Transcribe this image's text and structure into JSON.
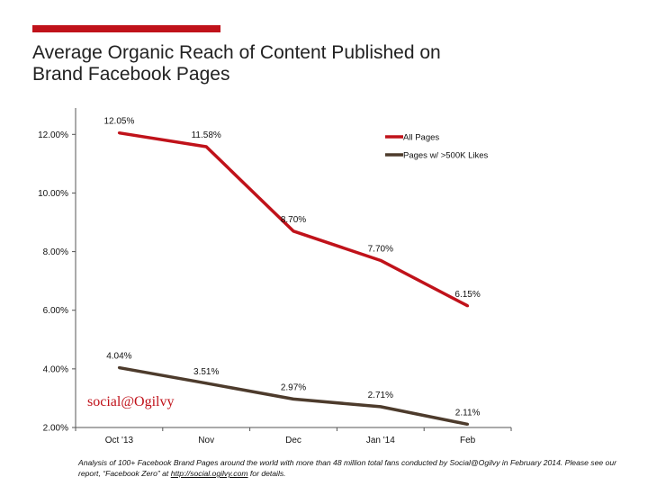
{
  "header": {
    "accent_color": "#c0121a",
    "title_line1": "Average Organic Reach of Content Published on",
    "title_line2": "Brand Facebook Pages"
  },
  "chart_data": {
    "type": "line",
    "title": "Average Organic Reach of Content Published on Brand Facebook Pages",
    "categories": [
      "Oct '13",
      "Nov",
      "Dec",
      "Jan '14",
      "Feb"
    ],
    "y_ticks": [
      "2.00%",
      "4.00%",
      "6.00%",
      "8.00%",
      "10.00%",
      "12.00%"
    ],
    "ylim": [
      2,
      12.9
    ],
    "grid": false,
    "legend_placement": "top-right",
    "series": [
      {
        "name": "All Pages",
        "color": "#c0121a",
        "values": [
          12.05,
          11.58,
          8.7,
          7.7,
          6.15
        ],
        "labels": [
          "12.05%",
          "11.58%",
          "8.70%",
          "7.70%",
          "6.15%"
        ]
      },
      {
        "name": "Pages w/ >500K Likes",
        "color": "#4d3b2c",
        "values": [
          4.04,
          3.51,
          2.97,
          2.71,
          2.11
        ],
        "labels": [
          "4.04%",
          "3.51%",
          "2.97%",
          "2.71%",
          "2.11%"
        ]
      }
    ]
  },
  "branding": {
    "logo_text": "social@Ogilvy"
  },
  "footnote": {
    "text_before": "Analysis of 100+ Facebook Brand Pages around the world with more than 48 million total fans conducted by Social@Ogilvy in February 2014. Please see our report, “Facebook Zero” at ",
    "link_text": "http://social.ogilvy.com",
    "text_after": " for details."
  }
}
